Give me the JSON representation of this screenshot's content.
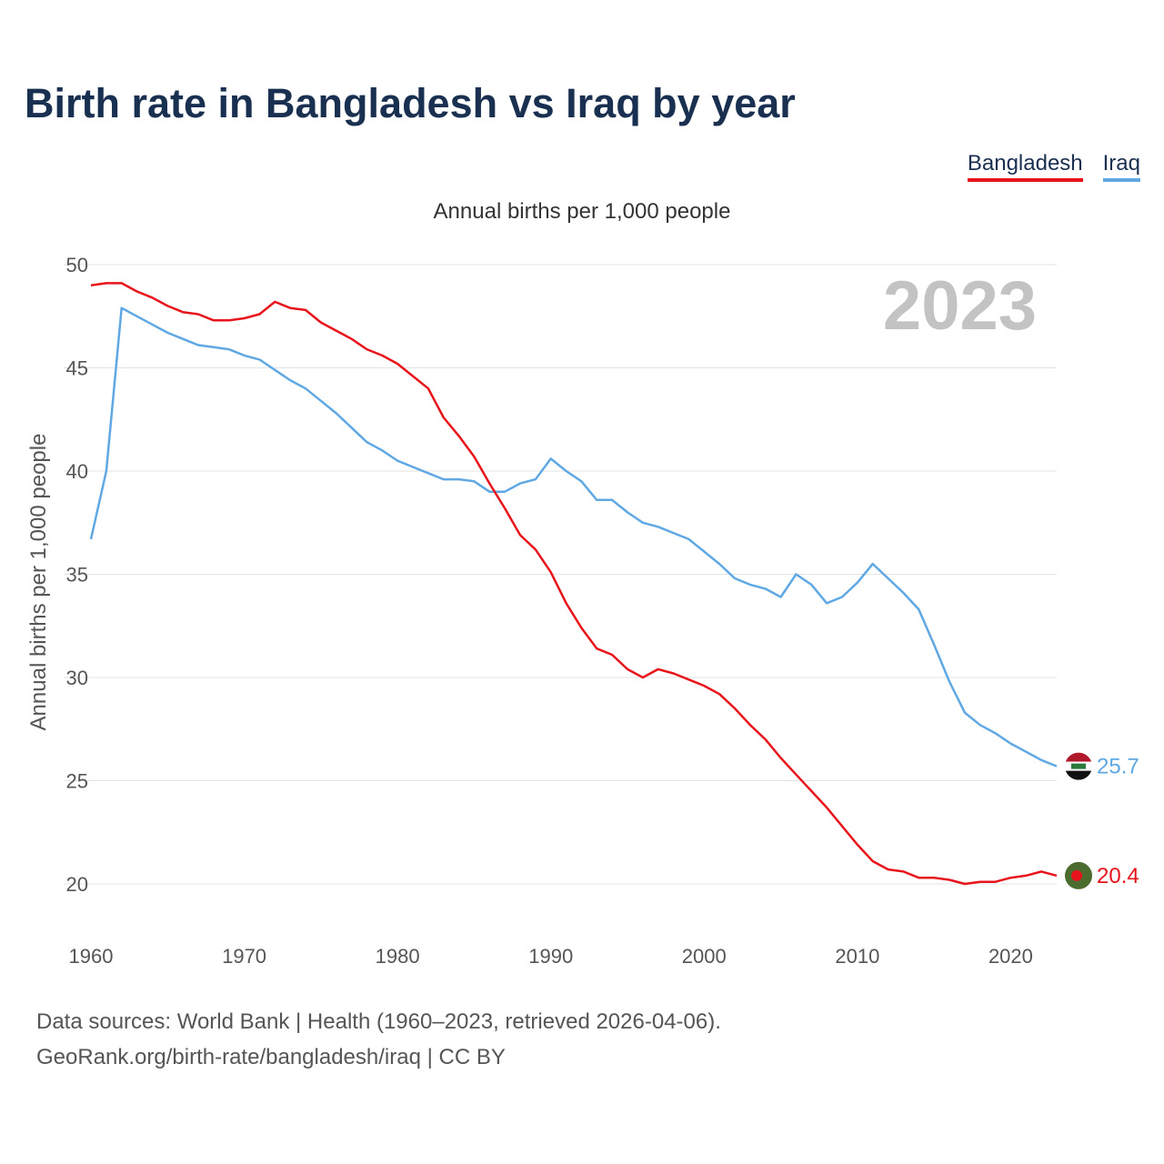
{
  "title": "Birth rate in Bangladesh vs Iraq by year",
  "legend": {
    "bangladesh": "Bangladesh",
    "iraq": "Iraq"
  },
  "sources": {
    "line1": "Data sources: World Bank | Health (1960–2023, retrieved 2026-04-06).",
    "line2": "GeoRank.org/birth-rate/bangladesh/iraq | CC BY"
  },
  "colors": {
    "bangladesh": "#e8141b",
    "iraq": "#5fa8e3",
    "title": "#1a3050"
  },
  "chart_data": {
    "type": "line",
    "subtitle": "Annual births per 1,000 people",
    "ylabel": "Annual births per 1,000 people",
    "year_watermark": "2023",
    "ylim": [
      18,
      50.5
    ],
    "xlim": [
      1960,
      2023
    ],
    "yticks": [
      20,
      25,
      30,
      35,
      40,
      45,
      50
    ],
    "xticks": [
      1960,
      1970,
      1980,
      1990,
      2000,
      2010,
      2020
    ],
    "x": [
      1960,
      1961,
      1962,
      1963,
      1964,
      1965,
      1966,
      1967,
      1968,
      1969,
      1970,
      1971,
      1972,
      1973,
      1974,
      1975,
      1976,
      1977,
      1978,
      1979,
      1980,
      1981,
      1982,
      1983,
      1984,
      1985,
      1986,
      1987,
      1988,
      1989,
      1990,
      1991,
      1992,
      1993,
      1994,
      1995,
      1996,
      1997,
      1998,
      1999,
      2000,
      2001,
      2002,
      2003,
      2004,
      2005,
      2006,
      2007,
      2008,
      2009,
      2010,
      2011,
      2012,
      2013,
      2014,
      2015,
      2016,
      2017,
      2018,
      2019,
      2020,
      2021,
      2022,
      2023
    ],
    "series": [
      {
        "name": "Bangladesh",
        "end_label": "20.4",
        "values": [
          49.0,
          49.1,
          49.1,
          48.7,
          48.4,
          48.0,
          47.7,
          47.6,
          47.3,
          47.3,
          47.4,
          47.6,
          48.2,
          47.9,
          47.8,
          47.2,
          46.8,
          46.4,
          45.9,
          45.6,
          45.2,
          44.6,
          44.0,
          42.6,
          41.7,
          40.7,
          39.4,
          38.2,
          36.9,
          36.2,
          35.1,
          33.6,
          32.4,
          31.4,
          31.1,
          30.4,
          30.0,
          30.4,
          30.2,
          29.9,
          29.6,
          29.2,
          28.5,
          27.7,
          27.0,
          26.1,
          25.3,
          24.5,
          23.7,
          22.8,
          21.9,
          21.1,
          20.7,
          20.6,
          20.3,
          20.3,
          20.2,
          20.0,
          20.1,
          20.1,
          20.3,
          20.4,
          20.6,
          20.4
        ]
      },
      {
        "name": "Iraq",
        "end_label": "25.7",
        "values": [
          36.7,
          40.0,
          47.9,
          47.5,
          47.1,
          46.7,
          46.4,
          46.1,
          46.0,
          45.9,
          45.6,
          45.4,
          44.9,
          44.4,
          44.0,
          43.4,
          42.8,
          42.1,
          41.4,
          41.0,
          40.5,
          40.2,
          39.9,
          39.6,
          39.6,
          39.5,
          39.0,
          39.0,
          39.4,
          39.6,
          40.6,
          40.0,
          39.5,
          38.6,
          38.6,
          38.0,
          37.5,
          37.3,
          37.0,
          36.7,
          36.1,
          35.5,
          34.8,
          34.5,
          34.3,
          33.9,
          35.0,
          34.5,
          33.6,
          33.9,
          34.6,
          35.5,
          34.8,
          34.1,
          33.3,
          31.6,
          29.8,
          28.3,
          27.7,
          27.3,
          26.8,
          26.4,
          26.0,
          25.7
        ]
      }
    ]
  }
}
